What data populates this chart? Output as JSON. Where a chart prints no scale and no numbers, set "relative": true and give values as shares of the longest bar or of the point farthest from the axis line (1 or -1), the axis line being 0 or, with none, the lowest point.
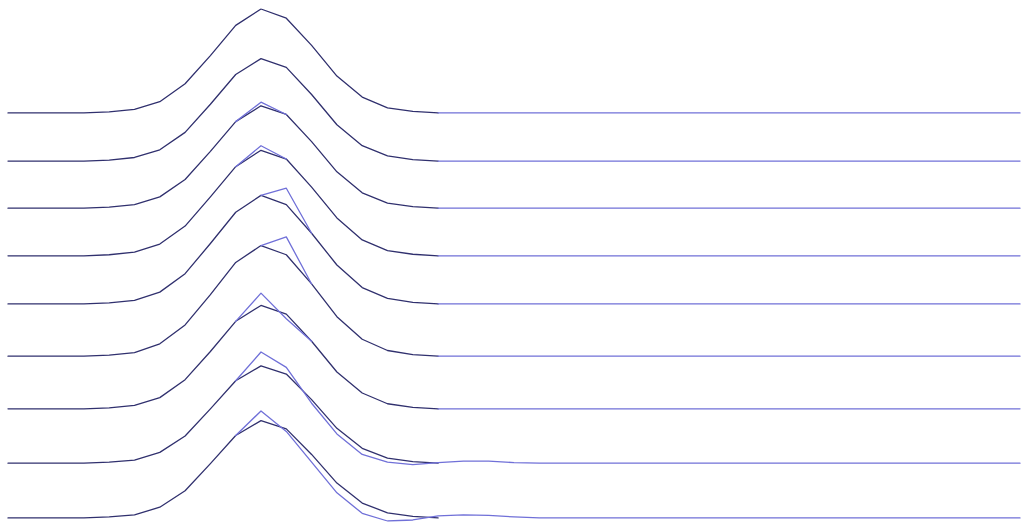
{
  "chart_data": {
    "type": "line",
    "relative": true,
    "grid": false,
    "marker": "none",
    "line_style": "solid",
    "tick_labels": false,
    "categories": [
      null,
      null,
      null,
      null,
      null,
      null,
      null,
      null,
      null,
      null,
      null,
      null,
      null,
      null,
      null,
      null,
      null,
      null,
      null,
      null,
      null,
      null,
      null,
      null,
      null,
      null,
      null,
      null,
      null,
      null,
      null,
      null,
      null,
      null,
      null,
      null,
      null,
      null,
      null,
      null,
      null
    ],
    "series": [
      {
        "color": "#30306e",
        "values": [
          0.797,
          0.797,
          0.797,
          0.797,
          0.799,
          0.804,
          0.819,
          0.854,
          0.909,
          0.968,
          1.0,
          0.982,
          0.929,
          0.869,
          0.828,
          0.807,
          0.8,
          0.797,
          null,
          null,
          null,
          null,
          null,
          null,
          null,
          null,
          null,
          null,
          null,
          null,
          null,
          null,
          null,
          null,
          null,
          null,
          null,
          null,
          null,
          null,
          null
        ]
      },
      {
        "color": "#7070d8",
        "values": [
          null,
          null,
          null,
          null,
          null,
          null,
          null,
          null,
          null,
          null,
          null,
          null,
          null,
          null,
          null,
          null,
          null,
          0.797,
          0.797,
          0.797,
          0.797,
          0.797,
          0.797,
          0.797,
          0.797,
          0.797,
          0.797,
          0.797,
          0.797,
          0.797,
          0.797,
          0.797,
          0.797,
          0.797,
          0.797,
          0.797,
          0.797,
          0.797,
          0.797,
          0.797,
          0.797
        ]
      },
      {
        "color": "#30306e",
        "values": [
          0.703,
          0.703,
          0.703,
          0.703,
          0.705,
          0.71,
          0.725,
          0.759,
          0.814,
          0.872,
          0.903,
          0.886,
          0.833,
          0.774,
          0.733,
          0.713,
          0.706,
          0.703,
          null,
          null,
          null,
          null,
          null,
          null,
          null,
          null,
          null,
          null,
          null,
          null,
          null,
          null,
          null,
          null,
          null,
          null,
          null,
          null,
          null,
          null,
          null
        ]
      },
      {
        "color": "#7070d8",
        "values": [
          null,
          null,
          null,
          null,
          null,
          null,
          null,
          null,
          null,
          null,
          null,
          null,
          null,
          null,
          null,
          null,
          null,
          0.703,
          0.703,
          0.703,
          0.703,
          0.703,
          0.703,
          0.703,
          0.703,
          0.703,
          0.703,
          0.703,
          0.703,
          0.703,
          0.703,
          0.703,
          0.703,
          0.703,
          0.703,
          0.703,
          0.703,
          0.703,
          0.703,
          0.703,
          0.703
        ]
      },
      {
        "color": "#30306e",
        "values": [
          0.611,
          0.611,
          0.611,
          0.611,
          0.613,
          0.618,
          0.633,
          0.667,
          0.722,
          0.78,
          0.811,
          0.794,
          0.741,
          0.682,
          0.641,
          0.621,
          0.614,
          0.611,
          null,
          null,
          null,
          null,
          null,
          null,
          null,
          null,
          null,
          null,
          null,
          null,
          null,
          null,
          null,
          null,
          null,
          null,
          null,
          null,
          null,
          null,
          null
        ]
      },
      {
        "color": "#7070d8",
        "values": [
          null,
          null,
          null,
          null,
          null,
          null,
          null,
          null,
          null,
          0.78,
          0.818,
          0.794,
          null,
          null,
          null,
          null,
          null,
          0.611,
          0.611,
          0.611,
          0.611,
          0.611,
          0.611,
          0.611,
          0.611,
          0.611,
          0.611,
          0.611,
          0.611,
          0.611,
          0.611,
          0.611,
          0.611,
          0.611,
          0.611,
          0.611,
          0.611,
          0.611,
          0.611,
          0.611,
          0.611
        ]
      },
      {
        "color": "#30306e",
        "values": [
          0.518,
          0.518,
          0.518,
          0.518,
          0.52,
          0.525,
          0.541,
          0.576,
          0.633,
          0.692,
          0.724,
          0.707,
          0.652,
          0.592,
          0.549,
          0.528,
          0.521,
          0.518,
          null,
          null,
          null,
          null,
          null,
          null,
          null,
          null,
          null,
          null,
          null,
          null,
          null,
          null,
          null,
          null,
          null,
          null,
          null,
          null,
          null,
          null,
          null
        ]
      },
      {
        "color": "#7070d8",
        "values": [
          null,
          null,
          null,
          null,
          null,
          null,
          null,
          null,
          null,
          0.692,
          0.733,
          0.707,
          null,
          null,
          null,
          null,
          null,
          0.518,
          0.518,
          0.518,
          0.518,
          0.518,
          0.518,
          0.518,
          0.518,
          0.518,
          0.518,
          0.518,
          0.518,
          0.518,
          0.518,
          0.518,
          0.518,
          0.518,
          0.518,
          0.518,
          0.518,
          0.518,
          0.518,
          0.518,
          0.518
        ]
      },
      {
        "color": "#30306e",
        "values": [
          0.424,
          0.424,
          0.424,
          0.424,
          0.426,
          0.431,
          0.447,
          0.483,
          0.542,
          0.603,
          0.636,
          0.618,
          0.562,
          0.5,
          0.456,
          0.435,
          0.427,
          0.424,
          null,
          null,
          null,
          null,
          null,
          null,
          null,
          null,
          null,
          null,
          null,
          null,
          null,
          null,
          null,
          null,
          null,
          null,
          null,
          null,
          null,
          null,
          null
        ]
      },
      {
        "color": "#7070d8",
        "values": [
          null,
          null,
          null,
          null,
          null,
          null,
          null,
          null,
          null,
          null,
          0.636,
          0.65,
          0.562,
          null,
          null,
          null,
          null,
          0.424,
          0.424,
          0.424,
          0.424,
          0.424,
          0.424,
          0.424,
          0.424,
          0.424,
          0.424,
          0.424,
          0.424,
          0.424,
          0.424,
          0.424,
          0.424,
          0.424,
          0.424,
          0.424,
          0.424,
          0.424,
          0.424,
          0.424,
          0.424
        ]
      },
      {
        "color": "#30306e",
        "values": [
          0.322,
          0.322,
          0.322,
          0.322,
          0.324,
          0.329,
          0.346,
          0.383,
          0.442,
          0.505,
          0.538,
          0.52,
          0.463,
          0.399,
          0.355,
          0.333,
          0.325,
          0.322,
          null,
          null,
          null,
          null,
          null,
          null,
          null,
          null,
          null,
          null,
          null,
          null,
          null,
          null,
          null,
          null,
          null,
          null,
          null,
          null,
          null,
          null,
          null
        ]
      },
      {
        "color": "#7070d8",
        "values": [
          null,
          null,
          null,
          null,
          null,
          null,
          null,
          null,
          null,
          null,
          0.538,
          0.555,
          0.463,
          null,
          null,
          null,
          null,
          0.322,
          0.322,
          0.322,
          0.322,
          0.322,
          0.322,
          0.322,
          0.322,
          0.322,
          0.322,
          0.322,
          0.322,
          0.322,
          0.322,
          0.322,
          0.322,
          0.322,
          0.322,
          0.322,
          0.322,
          0.322,
          0.322,
          0.322,
          0.322
        ]
      },
      {
        "color": "#30306e",
        "values": [
          0.219,
          0.219,
          0.219,
          0.219,
          0.221,
          0.226,
          0.241,
          0.276,
          0.331,
          0.39,
          0.421,
          0.404,
          0.351,
          0.291,
          0.25,
          0.229,
          0.222,
          0.219,
          null,
          null,
          null,
          null,
          null,
          null,
          null,
          null,
          null,
          null,
          null,
          null,
          null,
          null,
          null,
          null,
          null,
          null,
          null,
          null,
          null,
          null,
          null
        ]
      },
      {
        "color": "#7070d8",
        "values": [
          null,
          null,
          null,
          null,
          null,
          null,
          null,
          null,
          null,
          0.39,
          0.445,
          0.395,
          0.351,
          null,
          null,
          null,
          null,
          0.219,
          0.219,
          0.219,
          0.219,
          0.219,
          0.219,
          0.219,
          0.219,
          0.219,
          0.219,
          0.219,
          0.219,
          0.219,
          0.219,
          0.219,
          0.219,
          0.219,
          0.219,
          0.219,
          0.219,
          0.219,
          0.219,
          0.219,
          0.219
        ]
      },
      {
        "color": "#30306e",
        "values": [
          0.113,
          0.113,
          0.113,
          0.113,
          0.115,
          0.119,
          0.134,
          0.166,
          0.219,
          0.274,
          0.303,
          0.287,
          0.237,
          0.181,
          0.142,
          0.123,
          0.116,
          0.113,
          null,
          null,
          null,
          null,
          null,
          null,
          null,
          null,
          null,
          null,
          null,
          null,
          null,
          null,
          null,
          null,
          null,
          null,
          null,
          null,
          null,
          null,
          null
        ]
      },
      {
        "color": "#7070d8",
        "values": [
          null,
          null,
          null,
          null,
          null,
          null,
          null,
          null,
          null,
          0.274,
          0.33,
          0.3,
          0.23,
          0.17,
          0.13,
          0.115,
          0.11,
          0.114,
          0.117,
          0.117,
          0.114,
          0.113,
          0.113,
          0.113,
          0.113,
          0.113,
          0.113,
          0.113,
          0.113,
          0.113,
          0.113,
          0.113,
          0.113,
          0.113,
          0.113,
          0.113,
          0.113,
          0.113,
          0.113,
          0.113,
          0.113
        ]
      },
      {
        "color": "#30306e",
        "values": [
          0.006,
          0.006,
          0.006,
          0.006,
          0.008,
          0.012,
          0.027,
          0.059,
          0.112,
          0.167,
          0.196,
          0.18,
          0.13,
          0.074,
          0.035,
          0.016,
          0.009,
          0.006,
          null,
          null,
          null,
          null,
          null,
          null,
          null,
          null,
          null,
          null,
          null,
          null,
          null,
          null,
          null,
          null,
          null,
          null,
          null,
          null,
          null,
          null,
          null
        ]
      },
      {
        "color": "#7070d8",
        "values": [
          null,
          null,
          null,
          null,
          null,
          null,
          null,
          null,
          null,
          0.167,
          0.215,
          0.175,
          0.115,
          0.055,
          0.015,
          0.0,
          0.002,
          0.01,
          0.012,
          0.011,
          0.008,
          0.006,
          0.006,
          0.006,
          0.006,
          0.006,
          0.006,
          0.006,
          0.006,
          0.006,
          0.006,
          0.006,
          0.006,
          0.006,
          0.006,
          0.006,
          0.006,
          0.006,
          0.006,
          0.006,
          0.006
        ]
      }
    ]
  }
}
